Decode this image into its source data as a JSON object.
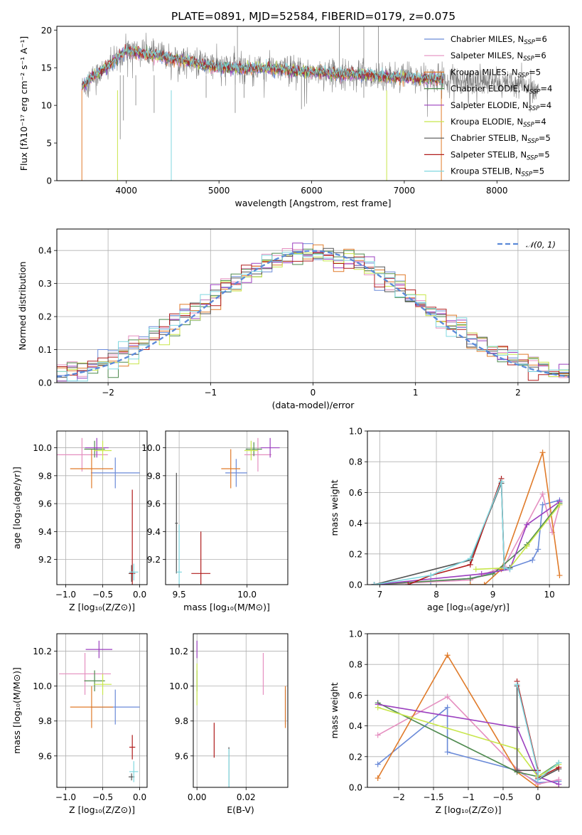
{
  "title": "PLATE=0891, MJD=52584, FIBERID=0179, z=0.075",
  "colors": {
    "Chabrier MILES": "#6a8ad8",
    "Salpeter MILES": "#e58fc0",
    "Kroupa MILES": "#e07b2a",
    "Chabrier ELODIE": "#4f8a4f",
    "Salpeter ELODIE": "#9b3fbf",
    "Kroupa ELODIE": "#c8e64c",
    "Chabrier STELIB": "#555555",
    "Salpeter STELIB": "#b01c1c",
    "Kroupa STELIB": "#80d8e0",
    "normal": "#5b8ad8"
  },
  "legend": [
    {
      "name": "Chabrier MILES",
      "sub": "SSP",
      "n": "6"
    },
    {
      "name": "Salpeter MILES",
      "sub": "SSP",
      "n": "6"
    },
    {
      "name": "Kroupa MILES",
      "sub": "SSP",
      "n": "5"
    },
    {
      "name": "Chabrier ELODIE",
      "sub": "SSP",
      "n": "4"
    },
    {
      "name": "Salpeter ELODIE",
      "sub": "SSP",
      "n": "4"
    },
    {
      "name": "Kroupa ELODIE",
      "sub": "SSP",
      "n": "4"
    },
    {
      "name": "Chabrier STELIB",
      "sub": "SSP",
      "n": "5"
    },
    {
      "name": "Salpeter STELIB",
      "sub": "SSP",
      "n": "5"
    },
    {
      "name": "Kroupa STELIB",
      "sub": "SSP",
      "n": "5"
    }
  ],
  "chart_data": [
    {
      "id": "spectrum",
      "type": "line",
      "xlabel": "wavelength [Angstrom, rest frame]",
      "ylabel": "Flux [fλ10⁻¹⁷ erg cm⁻² s⁻¹ A⁻¹]",
      "xlim": [
        3250,
        8780
      ],
      "ylim": [
        0,
        20.5
      ],
      "xticks": [
        4000,
        5000,
        6000,
        7000,
        8000
      ],
      "yticks": [
        0,
        5,
        10,
        15,
        20
      ],
      "observed_profile": {
        "x": [
          3520,
          3600,
          3800,
          4000,
          4300,
          4600,
          5000,
          5500,
          6000,
          6500,
          7000,
          7400,
          7800,
          8200,
          8450
        ],
        "y": [
          12.3,
          13.5,
          15.0,
          17.3,
          16.8,
          16.0,
          15.2,
          15.0,
          14.5,
          14.2,
          13.8,
          13.6,
          13.2,
          12.8,
          12.3
        ]
      },
      "model_profile": {
        "x": [
          3520,
          3600,
          3800,
          4000,
          4300,
          4600,
          5000,
          5500,
          6000,
          6500,
          7000,
          7400
        ],
        "y": [
          12.5,
          13.4,
          15.2,
          17.2,
          16.6,
          16.0,
          15.0,
          14.9,
          14.4,
          14.1,
          13.6,
          13.4
        ]
      },
      "observed_start": 3520,
      "observed_end": 8450,
      "model_start": 3520,
      "model_end": 7420,
      "absorption_lines": [
        {
          "x": 3934,
          "depth": 8.5
        },
        {
          "x": 3969,
          "depth": 6.0
        },
        {
          "x": 4102,
          "depth": 4.0
        },
        {
          "x": 4300,
          "depth": 5.0
        },
        {
          "x": 4861,
          "depth": 3.0
        },
        {
          "x": 5175,
          "depth": 5.0
        },
        {
          "x": 5270,
          "depth": 3.0
        },
        {
          "x": 5890,
          "depth": 4.5
        },
        {
          "x": 6563,
          "depth": 3.0
        }
      ],
      "emission_spikes": [
        {
          "x": 5199,
          "top": 20.5
        },
        {
          "x": 6300,
          "top": 20.5
        },
        {
          "x": 6563,
          "top": 20.5
        },
        {
          "x": 6720,
          "top": 20.5
        }
      ]
    },
    {
      "id": "residuals",
      "type": "histogram",
      "xlabel": "(data-model)/error",
      "ylabel": "Normed distribution",
      "xlim": [
        -2.5,
        2.5
      ],
      "ylim": [
        0,
        0.465
      ],
      "xticks": [
        -2,
        -1,
        0,
        1,
        2
      ],
      "yticks": [
        0.0,
        0.1,
        0.2,
        0.3,
        0.4
      ],
      "bin_width": 0.1,
      "normal_label": "𝒩(0, 1)"
    },
    {
      "id": "age_vs_Z",
      "type": "errorbar",
      "xlabel": "Z [log₁₀(Z/Z⊙)]",
      "ylabel": "age  [log₁₀(age/yr)]",
      "xlim": [
        -1.12,
        0.1
      ],
      "ylim": [
        9.02,
        10.12
      ],
      "xticks": [
        -1.0,
        -0.5,
        0.0
      ],
      "yticks": [
        9.2,
        9.4,
        9.6,
        9.8,
        10.0
      ],
      "points": [
        {
          "model": "Chabrier MILES",
          "x": -0.33,
          "xerr": 0.33,
          "y": 9.82,
          "yerr": 0.11
        },
        {
          "model": "Salpeter MILES",
          "x": -0.78,
          "xerr": 0.35,
          "y": 9.95,
          "yerr": 0.12
        },
        {
          "model": "Kroupa MILES",
          "x": -0.65,
          "xerr": 0.29,
          "y": 9.85,
          "yerr": 0.14
        },
        {
          "model": "Chabrier ELODIE",
          "x": -0.61,
          "xerr": 0.14,
          "y": 9.99,
          "yerr": 0.06
        },
        {
          "model": "Salpeter ELODIE",
          "x": -0.58,
          "xerr": 0.16,
          "y": 10.0,
          "yerr": 0.07
        },
        {
          "model": "Kroupa ELODIE",
          "x": -0.5,
          "xerr": 0.12,
          "y": 9.98,
          "yerr": 0.07
        },
        {
          "model": "Chabrier STELIB",
          "x": -0.11,
          "xerr": 0.04,
          "y": 9.1,
          "yerr": 0.06
        },
        {
          "model": "Salpeter STELIB",
          "x": -0.1,
          "xerr": 0.04,
          "y": 9.1,
          "yerr": 0.6
        },
        {
          "model": "Kroupa STELIB",
          "x": -0.08,
          "xerr": 0.06,
          "y": 9.11,
          "yerr": 0.06
        }
      ]
    },
    {
      "id": "age_vs_mass",
      "type": "errorbar",
      "xlabel": "mass [log₁₀(M/M⊙)]",
      "ylabel": "",
      "xlim": [
        9.4,
        10.3
      ],
      "ylim": [
        9.02,
        10.12
      ],
      "xticks": [
        9.5,
        10.0
      ],
      "yticks": [
        9.2,
        9.4,
        9.6,
        9.8,
        10.0
      ],
      "points": [
        {
          "model": "Chabrier MILES",
          "x": 9.92,
          "xerr": 0.08,
          "y": 9.82,
          "yerr": 0.1
        },
        {
          "model": "Salpeter MILES",
          "x": 10.08,
          "xerr": 0.1,
          "y": 9.95,
          "yerr": 0.12
        },
        {
          "model": "Kroupa MILES",
          "x": 9.88,
          "xerr": 0.07,
          "y": 9.85,
          "yerr": 0.14
        },
        {
          "model": "Chabrier ELODIE",
          "x": 10.05,
          "xerr": 0.06,
          "y": 9.99,
          "yerr": 0.05
        },
        {
          "model": "Salpeter ELODIE",
          "x": 10.17,
          "xerr": 0.07,
          "y": 10.0,
          "yerr": 0.07
        },
        {
          "model": "Kroupa ELODIE",
          "x": 10.03,
          "xerr": 0.05,
          "y": 9.98,
          "yerr": 0.07
        },
        {
          "model": "Chabrier STELIB",
          "x": 9.48,
          "xerr": 0.01,
          "y": 9.46,
          "yerr": 0.36
        },
        {
          "model": "Salpeter STELIB",
          "x": 9.66,
          "xerr": 0.07,
          "y": 9.1,
          "yerr": 0.3
        },
        {
          "model": "Kroupa STELIB",
          "x": 9.5,
          "xerr": 0.02,
          "y": 9.11,
          "yerr": 0.34
        }
      ]
    },
    {
      "id": "mass_weight_vs_age",
      "type": "line",
      "xlabel": "age  [log₁₀(age/yr)]",
      "ylabel": "mass weight",
      "xlim": [
        6.78,
        10.35
      ],
      "ylim": [
        0,
        1.0
      ],
      "xticks": [
        7,
        8,
        9,
        10
      ],
      "yticks": [
        0.0,
        0.2,
        0.4,
        0.6,
        0.8,
        1.0
      ],
      "series": [
        {
          "model": "Chabrier MILES",
          "x": [
            6.9,
            7.9,
            8.6,
            9.3,
            9.7,
            9.8,
            9.88,
            10.18
          ],
          "y": [
            0.0,
            0.02,
            0.04,
            0.11,
            0.16,
            0.23,
            0.52,
            0.55
          ]
        },
        {
          "model": "Salpeter MILES",
          "x": [
            6.9,
            8.6,
            9.2,
            9.88,
            10.05,
            10.18
          ],
          "y": [
            0.0,
            0.03,
            0.12,
            0.59,
            0.34,
            0.52
          ]
        },
        {
          "model": "Kroupa MILES",
          "x": [
            8.6,
            8.85,
            9.15,
            9.88,
            10.18
          ],
          "y": [
            0.0,
            0.0,
            0.1,
            0.86,
            0.06
          ]
        },
        {
          "model": "Chabrier ELODIE",
          "x": [
            6.9,
            8.6,
            9.0,
            9.6,
            10.18
          ],
          "y": [
            0.0,
            0.04,
            0.07,
            0.26,
            0.53
          ]
        },
        {
          "model": "Salpeter ELODIE",
          "x": [
            6.9,
            8.8,
            9.3,
            9.6,
            10.18
          ],
          "y": [
            0.0,
            0.07,
            0.1,
            0.39,
            0.54
          ]
        },
        {
          "model": "Kroupa ELODIE",
          "x": [
            8.7,
            9.3,
            9.6,
            10.18
          ],
          "y": [
            0.1,
            0.11,
            0.25,
            0.52
          ]
        },
        {
          "model": "Chabrier STELIB",
          "x": [
            6.9,
            8.6,
            9.15,
            9.2,
            9.3
          ],
          "y": [
            0.0,
            0.16,
            0.66,
            0.11,
            0.11
          ]
        },
        {
          "model": "Salpeter STELIB",
          "x": [
            7.5,
            7.9,
            8.6,
            9.15,
            9.2
          ],
          "y": [
            0.0,
            0.06,
            0.13,
            0.69,
            0.11
          ]
        },
        {
          "model": "Kroupa STELIB",
          "x": [
            6.9,
            7.9,
            8.6,
            9.15,
            9.2,
            9.3
          ],
          "y": [
            0.0,
            0.06,
            0.17,
            0.67,
            0.11,
            0.1
          ]
        }
      ]
    },
    {
      "id": "mass_vs_Z",
      "type": "errorbar",
      "xlabel": "Z [log₁₀(Z/Z⊙)]",
      "ylabel": "mass [log₁₀(M/M⊙)]",
      "xlim": [
        -1.12,
        0.1
      ],
      "ylim": [
        9.42,
        10.3
      ],
      "xticks": [
        -1.0,
        -0.5,
        0.0
      ],
      "yticks": [
        9.6,
        9.8,
        10.0,
        10.2
      ],
      "points": [
        {
          "model": "Chabrier MILES",
          "x": -0.33,
          "xerr": 0.33,
          "y": 9.88,
          "yerr": 0.1
        },
        {
          "model": "Salpeter MILES",
          "x": -0.74,
          "xerr": 0.35,
          "y": 10.07,
          "yerr": 0.12
        },
        {
          "model": "Kroupa MILES",
          "x": -0.65,
          "xerr": 0.29,
          "y": 9.88,
          "yerr": 0.12
        },
        {
          "model": "Chabrier ELODIE",
          "x": -0.61,
          "xerr": 0.14,
          "y": 10.03,
          "yerr": 0.06
        },
        {
          "model": "Salpeter ELODIE",
          "x": -0.55,
          "xerr": 0.18,
          "y": 10.21,
          "yerr": 0.05
        },
        {
          "model": "Kroupa ELODIE",
          "x": -0.5,
          "xerr": 0.12,
          "y": 10.01,
          "yerr": 0.06
        },
        {
          "model": "Chabrier STELIB",
          "x": -0.11,
          "xerr": 0.04,
          "y": 9.48,
          "yerr": 0.02
        },
        {
          "model": "Salpeter STELIB",
          "x": -0.1,
          "xerr": 0.04,
          "y": 9.65,
          "yerr": 0.07
        },
        {
          "model": "Kroupa STELIB",
          "x": -0.08,
          "xerr": 0.06,
          "y": 9.51,
          "yerr": 0.06
        }
      ]
    },
    {
      "id": "mass_vs_ebv",
      "type": "errorbar",
      "xlabel": "E(B-V)",
      "ylabel": "",
      "xlim": [
        -0.0015,
        0.037
      ],
      "ylim": [
        9.42,
        10.3
      ],
      "xticks": [
        0.0,
        0.02
      ],
      "yticks": [
        9.6,
        9.8,
        10.0,
        10.2
      ],
      "points": [
        {
          "model": "Chabrier MILES",
          "x": 0.036,
          "xerr": 0,
          "y": 9.88,
          "yerr": 0.1
        },
        {
          "model": "Salpeter MILES",
          "x": 0.027,
          "xerr": 0,
          "y": 10.07,
          "yerr": 0.12
        },
        {
          "model": "Kroupa MILES",
          "x": 0.036,
          "xerr": 0,
          "y": 9.88,
          "yerr": 0.12
        },
        {
          "model": "Chabrier ELODIE",
          "x": 0.0,
          "xerr": 0,
          "y": 10.03,
          "yerr": 0.06
        },
        {
          "model": "Salpeter ELODIE",
          "x": 0.0,
          "xerr": 0,
          "y": 10.21,
          "yerr": 0.05
        },
        {
          "model": "Kroupa ELODIE",
          "x": 0.0,
          "xerr": 0,
          "y": 10.01,
          "yerr": 0.12
        },
        {
          "model": "Chabrier STELIB",
          "x": 0.013,
          "xerr": 0,
          "y": 9.53,
          "yerr": 0.12
        },
        {
          "model": "Salpeter STELIB",
          "x": 0.007,
          "xerr": 0,
          "y": 9.69,
          "yerr": 0.1
        },
        {
          "model": "Kroupa STELIB",
          "x": 0.013,
          "xerr": 0,
          "y": 9.53,
          "yerr": 0.11
        }
      ]
    },
    {
      "id": "mass_weight_vs_Z",
      "type": "line",
      "xlabel": "Z [log₁₀(Z/Z⊙)]",
      "ylabel": "mass weight",
      "xlim": [
        -2.45,
        0.45
      ],
      "ylim": [
        0,
        1.0
      ],
      "xticks": [
        -2.0,
        -1.5,
        -1.0,
        -0.5,
        0.0
      ],
      "yticks": [
        0.0,
        0.2,
        0.4,
        0.6,
        0.8,
        1.0
      ],
      "series": [
        {
          "model": "Chabrier MILES",
          "x": [
            -2.3,
            -1.3,
            -1.3,
            -0.3,
            0.0,
            0.3
          ],
          "y": [
            0.15,
            0.52,
            0.23,
            0.11,
            0.03,
            0.04
          ]
        },
        {
          "model": "Salpeter MILES",
          "x": [
            -2.3,
            -1.3,
            -0.3,
            0.0,
            0.3
          ],
          "y": [
            0.34,
            0.59,
            0.12,
            0.02,
            0.05
          ]
        },
        {
          "model": "Kroupa MILES",
          "x": [
            -2.3,
            -1.3,
            -0.3,
            0.0,
            0.3
          ],
          "y": [
            0.06,
            0.86,
            0.1,
            0.0,
            0.0
          ]
        },
        {
          "model": "Chabrier ELODIE",
          "x": [
            -2.3,
            -0.3,
            0.0,
            0.3
          ],
          "y": [
            0.55,
            0.1,
            0.07,
            0.16
          ]
        },
        {
          "model": "Salpeter ELODIE",
          "x": [
            -2.3,
            -0.3,
            0.0,
            0.3
          ],
          "y": [
            0.54,
            0.39,
            0.07,
            0.02
          ]
        },
        {
          "model": "Kroupa ELODIE",
          "x": [
            -2.3,
            -0.3,
            0.0,
            0.3
          ],
          "y": [
            0.52,
            0.25,
            0.07,
            0.15
          ]
        },
        {
          "model": "Chabrier STELIB",
          "x": [
            -0.3,
            -0.3,
            0.0,
            0.0,
            0.3
          ],
          "y": [
            0.66,
            0.11,
            0.11,
            0.05,
            0.12
          ]
        },
        {
          "model": "Salpeter STELIB",
          "x": [
            -0.3,
            0.0,
            0.0,
            0.3
          ],
          "y": [
            0.69,
            0.11,
            0.06,
            0.13
          ]
        },
        {
          "model": "Kroupa STELIB",
          "x": [
            -0.3,
            0.0,
            0.0,
            0.3
          ],
          "y": [
            0.67,
            0.1,
            0.05,
            0.16
          ]
        }
      ]
    }
  ]
}
